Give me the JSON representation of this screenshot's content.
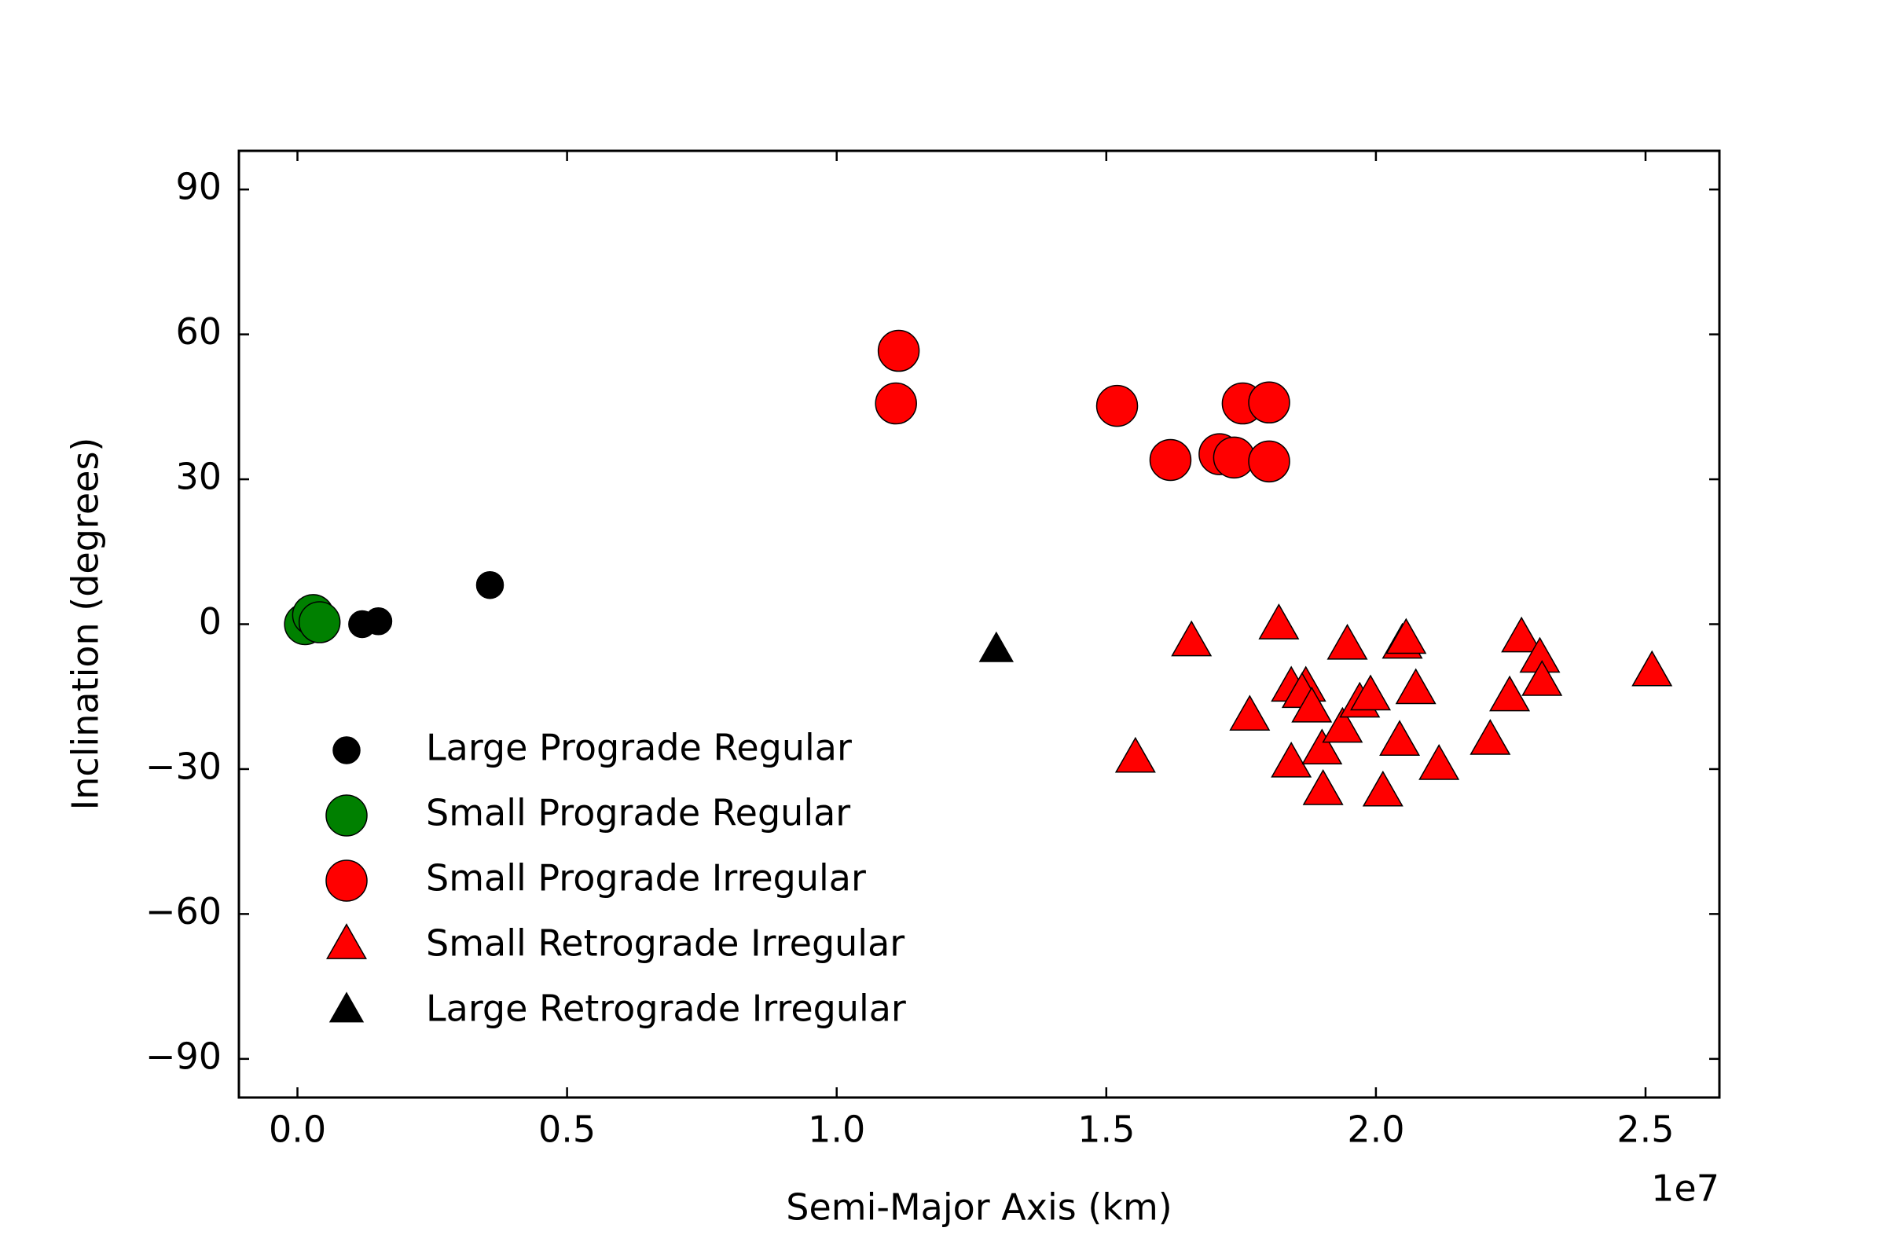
{
  "chart_data": {
    "type": "scatter",
    "xlabel": "Semi-Major Axis (km)",
    "ylabel": "Inclination (degrees)",
    "x_offset_label": "1e7",
    "xlim": [
      -1086000,
      26370000
    ],
    "ylim": [
      -98,
      98
    ],
    "xticks": [
      {
        "value": 0,
        "label": "0.0"
      },
      {
        "value": 5000000,
        "label": "0.5"
      },
      {
        "value": 10000000,
        "label": "1.0"
      },
      {
        "value": 15000000,
        "label": "1.5"
      },
      {
        "value": 20000000,
        "label": "2.0"
      },
      {
        "value": 25000000,
        "label": "2.5"
      }
    ],
    "yticks": [
      {
        "value": -90,
        "label": "−90"
      },
      {
        "value": -60,
        "label": "−60"
      },
      {
        "value": -30,
        "label": "−30"
      },
      0,
      30,
      60,
      90
    ],
    "grid": false,
    "legend": "lower left",
    "series": [
      {
        "name": "Large Prograde Regular",
        "color": "#000000",
        "marker": "o",
        "x": [
          1200000,
          1500000,
          3570000
        ],
        "values": [
          0,
          0.6,
          8.1
        ]
      },
      {
        "name": "Small Prograde Regular",
        "color": "#008000",
        "marker": "o",
        "x": [
          140000,
          290000,
          410000
        ],
        "values": [
          0,
          1.9,
          0.4
        ]
      },
      {
        "name": "Small Prograde Irregular",
        "color": "#ff0000",
        "marker": "o",
        "x": [
          11150000,
          11100000,
          15200000,
          16190000,
          17100000,
          17370000,
          17530000,
          18020000,
          18020000
        ],
        "values": [
          56.6,
          45.7,
          45.2,
          34.0,
          35.2,
          34.5,
          45.7,
          45.9,
          33.7
        ]
      },
      {
        "name": "Small Retrograde Irregular",
        "color": "#ff0000",
        "marker": "^",
        "x": [
          16580000,
          15540000,
          18200000,
          17660000,
          18430000,
          18700000,
          18630000,
          18810000,
          18430000,
          19000000,
          19020000,
          19380000,
          19470000,
          19700000,
          19900000,
          20440000,
          20130000,
          20490000,
          20560000,
          20740000,
          21170000,
          22120000,
          22480000,
          22700000,
          23040000,
          23080000,
          25120000
        ],
        "values": [
          -3.9,
          -28,
          -0.4,
          -19.3,
          -13.3,
          -13.3,
          -14.6,
          -17.6,
          -29,
          -26.3,
          -34.7,
          -21.8,
          -4.6,
          -16.6,
          -15.1,
          -24.5,
          -35,
          -4.4,
          -3.4,
          -13.8,
          -29.5,
          -24.3,
          -15.3,
          -3.1,
          -7.3,
          -12.1,
          -10.1
        ]
      },
      {
        "name": "Large Retrograde Irregular",
        "color": "#000000",
        "marker": "^",
        "x": [
          12960000
        ],
        "values": [
          -5.5
        ]
      }
    ]
  }
}
